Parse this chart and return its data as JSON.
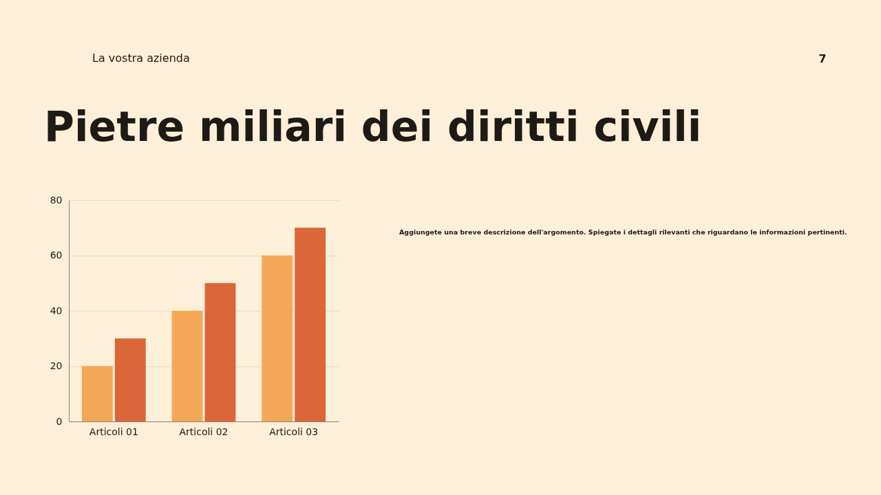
{
  "chart_data": {
    "type": "bar",
    "title": "Pietre miliari dei diritti civili",
    "annotations": [
      "La vostra azienda",
      "7",
      "Aggiungete una breve descrizione dell'argomento. Spiegate i dettagli rilevanti che riguardano le informazioni pertinenti."
    ],
    "categories": [
      "Articoli 01",
      "Articoli 02",
      "Articoli 03"
    ],
    "series": [
      {
        "color": "#f4a857",
        "values": [
          20,
          40,
          60
        ]
      },
      {
        "color": "#da663a",
        "values": [
          30,
          50,
          70
        ]
      }
    ],
    "ylim": [
      0,
      80
    ],
    "yticks": [
      0,
      20,
      40,
      60,
      80
    ],
    "grid": "y",
    "legend": false
  }
}
